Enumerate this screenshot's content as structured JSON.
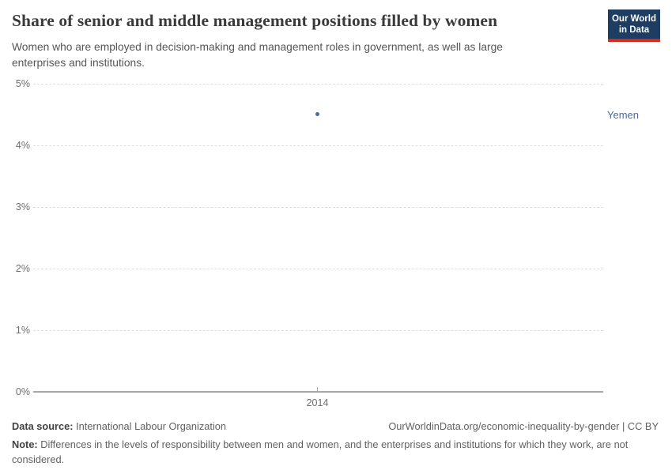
{
  "header": {
    "title": "Share of senior and middle management positions filled by women",
    "subtitle": "Women who are employed in decision-making and management roles in government, as well as large enterprises and institutions.",
    "logo_line1": "Our World",
    "logo_line2": "in Data",
    "logo_colors": {
      "background": "#1d3d63",
      "stripe": "#d42b21"
    }
  },
  "chart_data": {
    "type": "scatter",
    "title": "Share of senior and middle management positions filled by women",
    "series": [
      {
        "name": "Yemen",
        "points": [
          {
            "x": 2014,
            "y": 4.5
          }
        ],
        "color": "#4c6a9c"
      }
    ],
    "entity_label": "Yemen",
    "x_ticks": [
      "2014"
    ],
    "y_ticks": [
      "5%",
      "4%",
      "3%",
      "2%",
      "1%",
      "0%"
    ],
    "ylim": [
      0,
      5
    ],
    "xlabel": "",
    "ylabel": "",
    "grid": "horizontal-dashed",
    "legend_position": "right-of-plot",
    "colors": {
      "point": "#4c6a9c",
      "gridline": "#dedede",
      "axis": "#a8a8a8",
      "tick_text": "#6e6e6e"
    }
  },
  "footer": {
    "data_source_label": "Data source:",
    "data_source_value": " International Labour Organization",
    "credit": "OurWorldinData.org/economic-inequality-by-gender | CC BY",
    "note_label": "Note:",
    "note_text": " Differences in the levels of responsibility between men and women, and the enterprises and institutions for which they work, are not considered."
  }
}
